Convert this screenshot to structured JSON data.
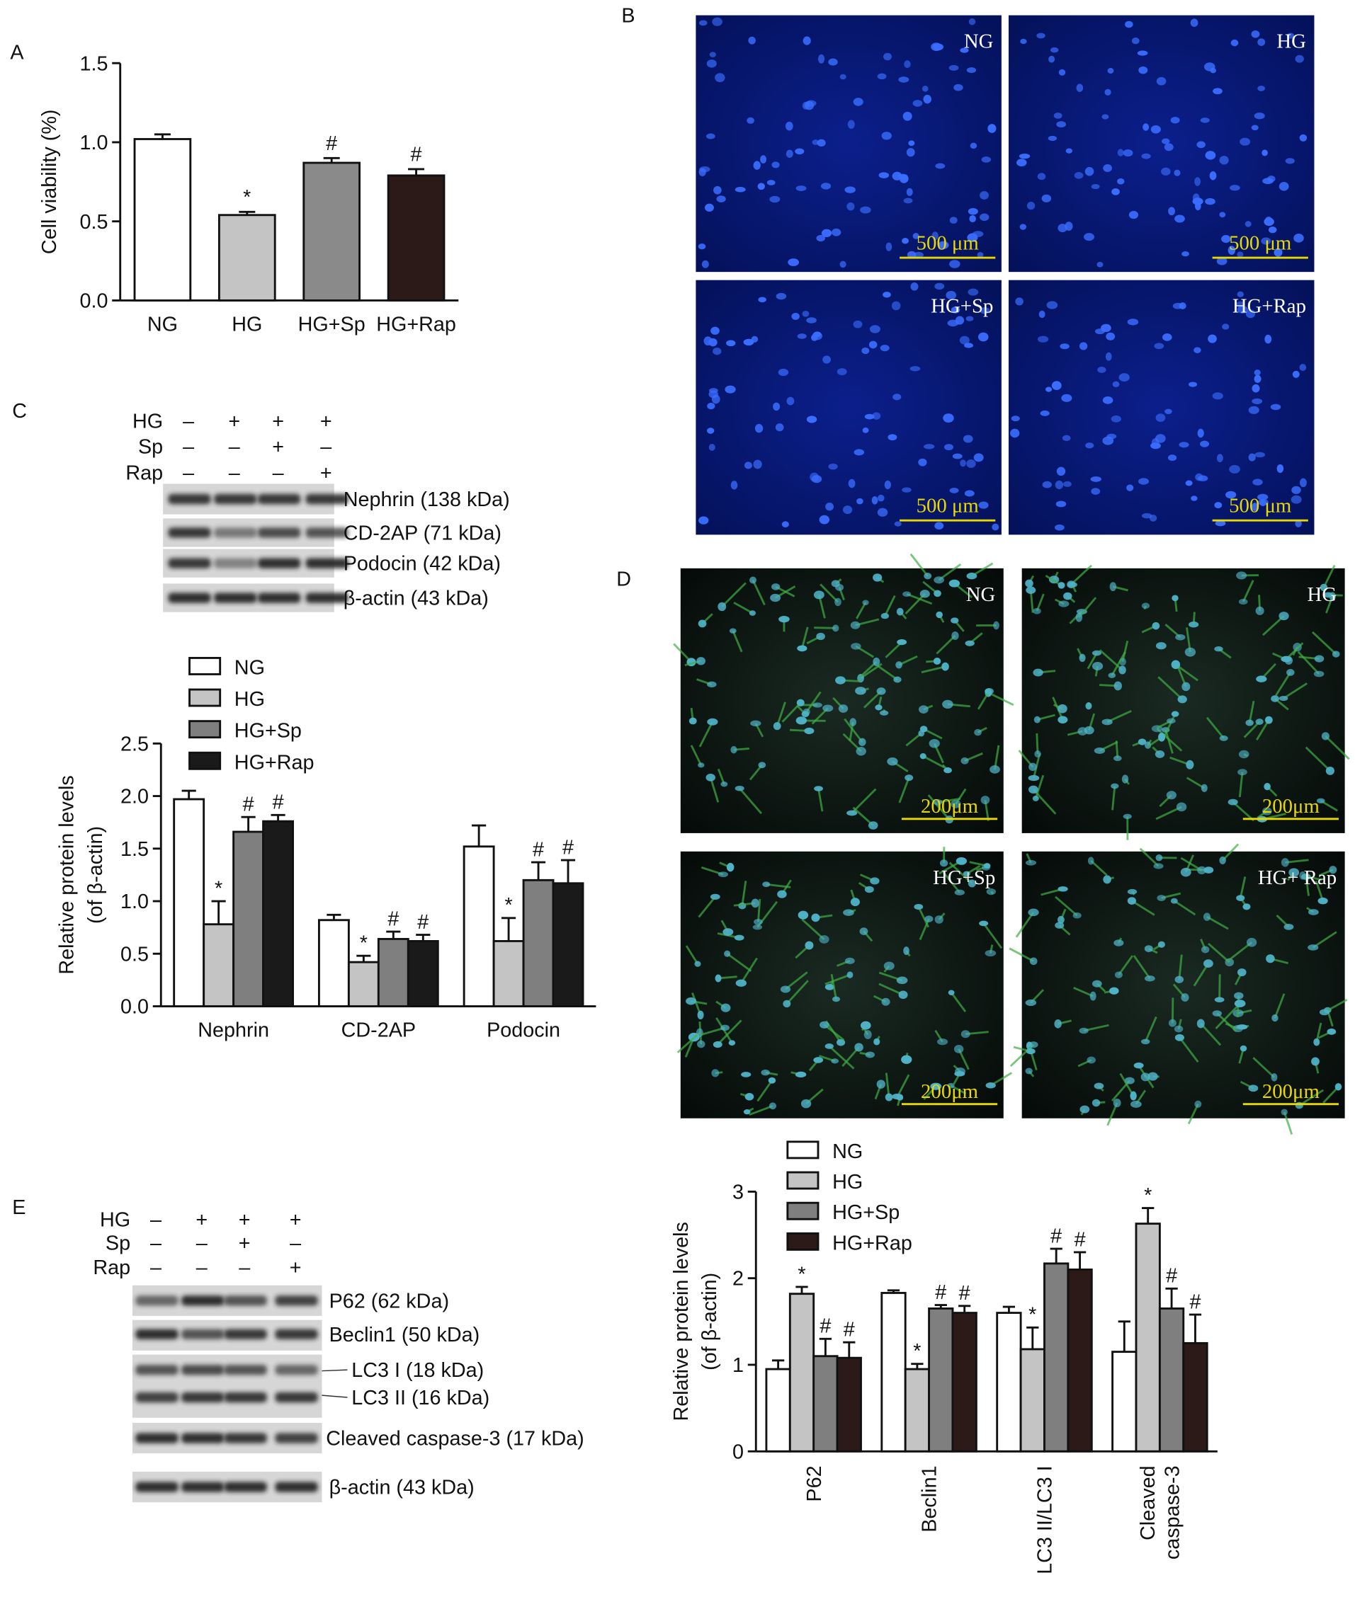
{
  "panel_labels": [
    "A",
    "B",
    "C",
    "D",
    "E"
  ],
  "chart_data": [
    {
      "type": "bar",
      "y_label": [
        "Cell viability (%)"
      ],
      "categories": [
        "NG",
        "HG",
        "HG+Sp",
        "HG+Rap"
      ],
      "values": [
        1.02,
        0.54,
        0.87,
        0.79
      ],
      "errors": [
        0.03,
        0.02,
        0.03,
        0.04
      ],
      "significance": [
        null,
        "*",
        "#",
        "#"
      ],
      "colors": [
        "#ffffff",
        "#c4c4c4",
        "#8a8a8a",
        "#2b1a18"
      ],
      "ylim": [
        0,
        1.5
      ],
      "yticks": [
        {
          "value": 0,
          "label": "0.0"
        },
        0.5,
        {
          "value": 1,
          "label": "1.0"
        },
        1.5
      ]
    },
    {
      "type": "grouped_bar",
      "y_label": [
        "Relative protein levels",
        "(of β-actin)"
      ],
      "categories": [
        "Nephrin",
        "CD-2AP",
        "Podocin"
      ],
      "series": [
        {
          "name": "NG",
          "color": "#ffffff",
          "values": [
            1.97,
            0.82,
            1.52
          ],
          "errors": [
            0.08,
            0.05,
            0.2
          ],
          "significance": [
            null,
            null,
            null
          ]
        },
        {
          "name": "HG",
          "color": "#c4c4c4",
          "values": [
            0.78,
            0.42,
            0.62
          ],
          "errors": [
            0.22,
            0.06,
            0.22
          ],
          "significance": [
            "*",
            "*",
            "*"
          ]
        },
        {
          "name": "HG+Sp",
          "color": "#7f7f7f",
          "values": [
            1.66,
            0.64,
            1.2
          ],
          "errors": [
            0.14,
            0.07,
            0.17
          ],
          "significance": [
            "#",
            "#",
            "#"
          ]
        },
        {
          "name": "HG+Rap",
          "color": "#1a1a1a",
          "values": [
            1.76,
            0.62,
            1.17
          ],
          "errors": [
            0.06,
            0.06,
            0.22
          ],
          "significance": [
            "#",
            "#",
            "#"
          ]
        }
      ],
      "ylim": [
        0,
        2.5
      ],
      "yticks": [
        {
          "value": 0,
          "label": "0.0"
        },
        0.5,
        {
          "value": 1,
          "label": "1.0"
        },
        1.5,
        {
          "value": 2,
          "label": "2.0"
        },
        2.5
      ]
    },
    {
      "type": "grouped_bar",
      "y_label": [
        "Relative protein levels",
        "(of β-actin)"
      ],
      "categories": [
        "P62",
        "Beclin1",
        "LC3 II/LC3 I",
        [
          "Cleaved",
          "caspase-3"
        ]
      ],
      "series": [
        {
          "name": "NG",
          "color": "#ffffff",
          "values": [
            0.95,
            1.83,
            1.6,
            1.15
          ],
          "errors": [
            0.1,
            0.03,
            0.07,
            0.35
          ],
          "significance": [
            null,
            null,
            null,
            null
          ]
        },
        {
          "name": "HG",
          "color": "#c4c4c4",
          "values": [
            1.82,
            0.95,
            1.18,
            2.63
          ],
          "errors": [
            0.08,
            0.06,
            0.25,
            0.18
          ],
          "significance": [
            "*",
            "*",
            "*",
            "*"
          ]
        },
        {
          "name": "HG+Sp",
          "color": "#7f7f7f",
          "values": [
            1.1,
            1.65,
            2.17,
            1.65
          ],
          "errors": [
            0.2,
            0.04,
            0.17,
            0.23
          ],
          "significance": [
            "#",
            "#",
            "#",
            "#"
          ]
        },
        {
          "name": "HG+Rap",
          "color": "#2b1a18",
          "values": [
            1.08,
            1.6,
            2.1,
            1.25
          ],
          "errors": [
            0.18,
            0.08,
            0.2,
            0.33
          ],
          "significance": [
            "#",
            "#",
            "#",
            "#"
          ]
        }
      ],
      "ylim": [
        0,
        3
      ],
      "yticks": [
        0,
        1,
        2,
        3
      ]
    }
  ],
  "micrographs_b": {
    "labels": [
      "NG",
      "HG",
      "HG+Sp",
      "HG+Rap"
    ],
    "scale_bar": "500 μm"
  },
  "micrographs_d": {
    "labels": [
      "NG",
      "HG",
      "HG+Sp",
      "HG+ Rap"
    ],
    "scale_bar": "200μm"
  },
  "blot_c": {
    "conditions": [
      {
        "name": "HG",
        "signs": [
          "–",
          "+",
          "+",
          "+"
        ]
      },
      {
        "name": "Sp",
        "signs": [
          "–",
          "–",
          "+",
          "–"
        ]
      },
      {
        "name": "Rap",
        "signs": [
          "–",
          "–",
          "–",
          "+"
        ]
      }
    ],
    "bands": [
      "Nephrin (138 kDa)",
      "CD-2AP (71 kDa)",
      "Podocin (42 kDa)",
      "β-actin (43 kDa)"
    ]
  },
  "blot_e": {
    "conditions": [
      {
        "name": "HG",
        "signs": [
          "–",
          "+",
          "+",
          "+"
        ]
      },
      {
        "name": "Sp",
        "signs": [
          "–",
          "–",
          "+",
          "–"
        ]
      },
      {
        "name": "Rap",
        "signs": [
          "–",
          "–",
          "–",
          "+"
        ]
      }
    ],
    "bands": [
      "P62 (62 kDa)",
      "Beclin1 (50 kDa)",
      "LC3 I (18 kDa)",
      "LC3 II (16 kDa)",
      "Cleaved caspase-3 (17 kDa)",
      "β-actin (43 kDa)"
    ]
  }
}
